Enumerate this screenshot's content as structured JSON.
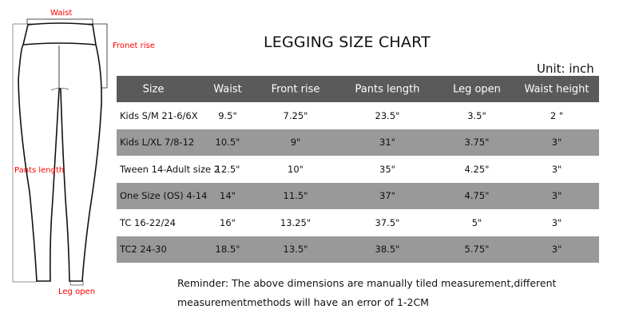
{
  "title": "LEGGING SIZE CHART",
  "unit": "Unit: inch",
  "diagram": {
    "waist": "Waist",
    "front_rise": "Fronet rise",
    "pants_length": "Pants length",
    "leg_open": "Leg open"
  },
  "colors": {
    "header_bg": "#5a5a5a",
    "stripe_bg": "#999999",
    "label_red": "#ff0000"
  },
  "table": {
    "headers": [
      "Size",
      "Waist",
      "Front rise",
      "Pants length",
      "Leg open",
      "Waist height"
    ],
    "rows": [
      [
        "Kids S/M 21-6/6X",
        "9.5\"",
        "7.25\"",
        "23.5\"",
        "3.5\"",
        "2 \""
      ],
      [
        "Kids L/XL 7/8-12",
        "10.5\"",
        "9\"",
        "31\"",
        "3.75\"",
        "3\""
      ],
      [
        "Tween 14-Adult size 2",
        "12.5\"",
        "10\"",
        "35\"",
        "4.25\"",
        "3\""
      ],
      [
        "One Size  (OS)   4-14",
        "14\"",
        "11.5\"",
        "37\"",
        "4.75\"",
        "3\""
      ],
      [
        "TC 16-22/24",
        "16\"",
        "13.25\"",
        "37.5\"",
        "5\"",
        "3\""
      ],
      [
        "TC2 24-30",
        "18.5\"",
        "13.5\"",
        "38.5\"",
        "5.75\"",
        "3\""
      ]
    ]
  },
  "reminder": [
    "Reminder: The above dimensions are manually tiled measurement,different",
    "measurementmethods will have an error of 1-2CM"
  ]
}
